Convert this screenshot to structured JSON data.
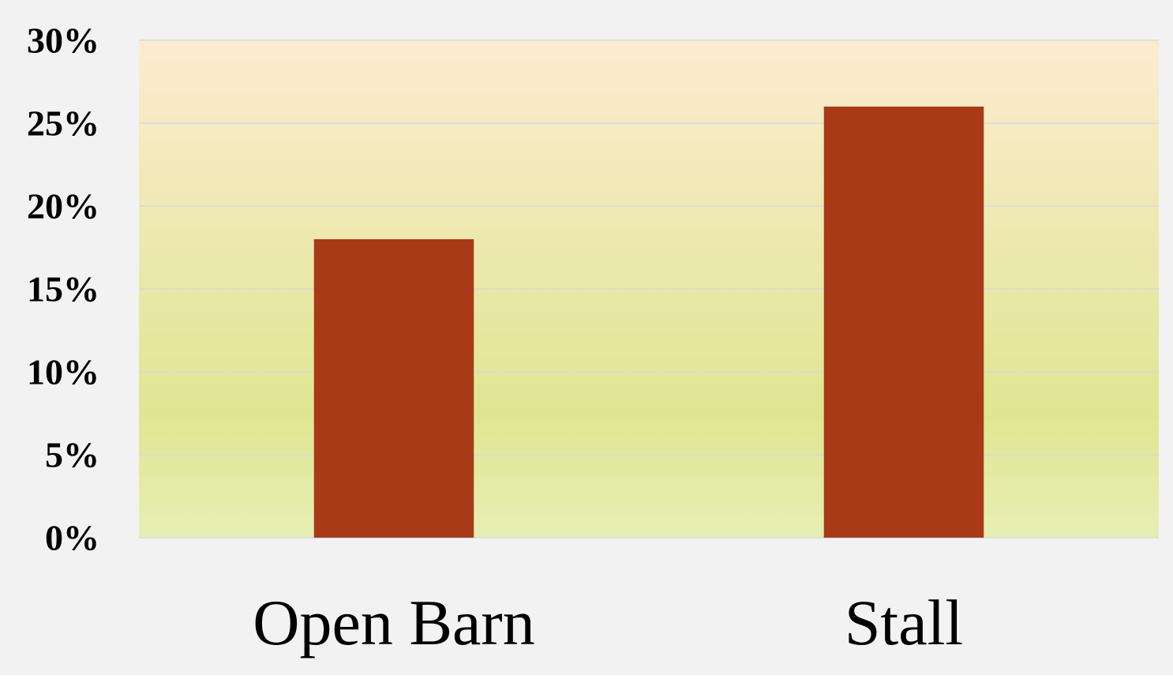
{
  "chart_data": {
    "type": "bar",
    "title": "",
    "xlabel": "",
    "ylabel": "",
    "categories": [
      "Open Barn",
      "Stall"
    ],
    "values": [
      0.18,
      0.26
    ],
    "ylim": [
      0,
      0.3
    ],
    "ytick_values": [
      0,
      0.05,
      0.1,
      0.15,
      0.2,
      0.25,
      0.3
    ],
    "ytick_labels": [
      "0%",
      "5%",
      "10%",
      "15%",
      "20%",
      "25%",
      "30%"
    ],
    "grid": true,
    "legend": "none",
    "colors": {
      "bar": "#a93a17",
      "gridline": "#d9d9d9",
      "outer_background": "#f2f2f2",
      "plot_gradient_top": "#fdebd0",
      "plot_gradient_mid": "#dfe692",
      "plot_gradient_bottom": "#e6efb3",
      "text": "#000000"
    }
  }
}
